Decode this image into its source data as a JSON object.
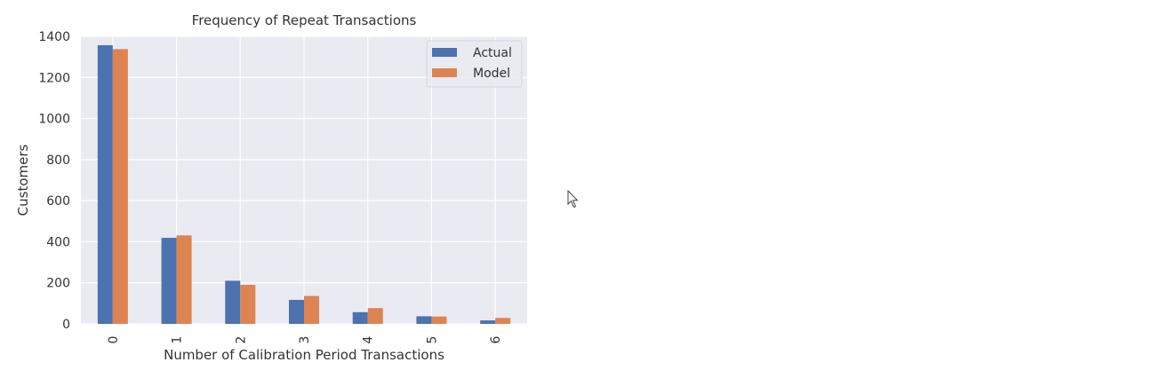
{
  "chart_data": {
    "type": "bar",
    "title": "Frequency of Repeat Transactions",
    "xlabel": "Number of Calibration Period Transactions",
    "ylabel": "Customers",
    "categories": [
      "0",
      "1",
      "2",
      "3",
      "4",
      "5",
      "6"
    ],
    "series": [
      {
        "name": "Actual",
        "color": "#4C72B0",
        "values": [
          1357,
          419,
          210,
          117,
          57,
          37,
          17
        ]
      },
      {
        "name": "Model",
        "color": "#DD8452",
        "values": [
          1338,
          431,
          190,
          136,
          77,
          36,
          29
        ]
      }
    ],
    "ylim": [
      0,
      1400
    ],
    "yticks": [
      "0",
      "200",
      "400",
      "600",
      "800",
      "1000",
      "1200",
      "1400"
    ],
    "grid": true,
    "legend": "top-right",
    "background": "#EAEAF2"
  },
  "cursor": {
    "icon": "mouse-pointer-icon"
  }
}
